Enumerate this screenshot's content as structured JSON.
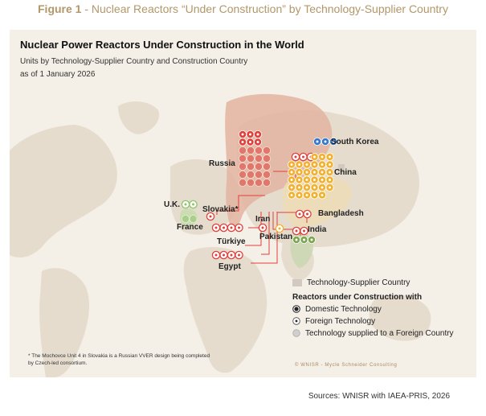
{
  "figure": {
    "title_prefix": "Figure 1",
    "title_rest": " - Nuclear Reactors “Under Construction” by Technology-Supplier Country"
  },
  "panel": {
    "title": "Nuclear Power Reactors Under Construction in the World",
    "subtitle_line1": "Units by Technology-Supplier Country and Construction Country",
    "subtitle_line2": "as of 1 January 2026"
  },
  "countries": {
    "south_korea": "South Korea",
    "russia": "Russia",
    "china": "China",
    "uk": "U.K.",
    "slovakia": "Slovakia*",
    "france": "France",
    "iran": "Iran",
    "bangladesh": "Bangladesh",
    "turkiye": "Türkiye",
    "pakistan": "Pakistan",
    "india": "India",
    "egypt": "Egypt"
  },
  "reactor_counts": {
    "russia_domestic": 6,
    "russia_export": 20,
    "china_domestic": 32,
    "china_foreign": 3,
    "south_korea_export": 3,
    "uk_foreign": 2,
    "france_export": 2,
    "slovakia_foreign": 1,
    "iran_foreign": 1,
    "bangladesh_foreign": 2,
    "turkiye_foreign": 4,
    "pakistan_foreign": 1,
    "india_domestic": 3,
    "india_foreign": 2,
    "egypt_foreign": 4
  },
  "legend": {
    "supplier_label": "Technology-Supplier Country",
    "heading": "Reactors under Construction with",
    "domestic": "Domestic Technology",
    "foreign": "Foreign Technology",
    "supplied": "Technology supplied to a Foreign Country"
  },
  "footnote": "* The Mochovce Unit 4 in Slovakia is a Russian VVER design being completed by Czech-led consortium.",
  "credit": "© WNISR - Mycle Schneider Consulting",
  "sources": "Sources: WNISR with IAEA-PRIS, 2026",
  "colors": {
    "russia": "#e0413b",
    "china": "#f2b12f",
    "south_korea": "#2f7ad0",
    "france": "#8fc56a",
    "india": "#7ea552",
    "supplier_fill": "#d2cac0",
    "land": "#e5dccd",
    "background": "#f4efe7",
    "title_accent": "#b2976a"
  }
}
